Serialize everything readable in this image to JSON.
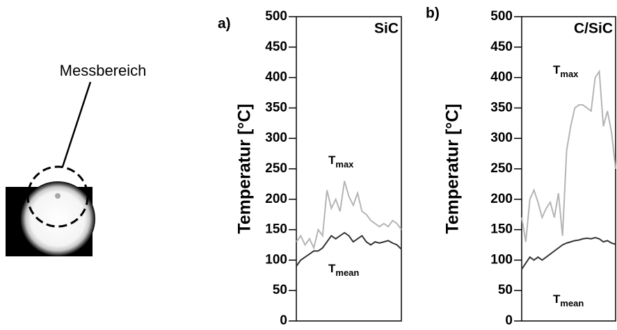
{
  "image_label": "Messbereich",
  "chart_data": [
    {
      "type": "line",
      "panel": "a)",
      "title": "SiC",
      "ylabel": "Temperatur [°C]",
      "ylim": [
        0,
        500
      ],
      "yticks": [
        0,
        50,
        100,
        150,
        200,
        250,
        300,
        350,
        400,
        450,
        500
      ],
      "series": [
        {
          "name": "T",
          "subscript": "max",
          "color": "#b4b4b4",
          "values": [
            130,
            140,
            125,
            135,
            120,
            150,
            140,
            215,
            185,
            200,
            180,
            230,
            205,
            190,
            210,
            180,
            175,
            165,
            160,
            155,
            160,
            155,
            165,
            160,
            150
          ]
        },
        {
          "name": "T",
          "subscript": "mean",
          "color": "#333333",
          "values": [
            90,
            100,
            105,
            110,
            115,
            115,
            120,
            130,
            140,
            135,
            140,
            145,
            140,
            130,
            135,
            140,
            130,
            125,
            130,
            128,
            130,
            132,
            128,
            125,
            118
          ]
        }
      ]
    },
    {
      "type": "line",
      "panel": "b)",
      "title": "C/SiC",
      "ylabel": "Temperatur [°C]",
      "ylim": [
        0,
        500
      ],
      "yticks": [
        0,
        50,
        100,
        150,
        200,
        250,
        300,
        350,
        400,
        450,
        500
      ],
      "series": [
        {
          "name": "T",
          "subscript": "max",
          "color": "#b4b4b4",
          "values": [
            170,
            130,
            200,
            215,
            195,
            170,
            185,
            195,
            170,
            210,
            140,
            280,
            320,
            350,
            355,
            355,
            350,
            345,
            400,
            410,
            320,
            345,
            310,
            250
          ]
        },
        {
          "name": "T",
          "subscript": "mean",
          "color": "#333333",
          "values": [
            85,
            95,
            105,
            100,
            105,
            100,
            105,
            110,
            115,
            120,
            125,
            128,
            130,
            132,
            133,
            135,
            136,
            135,
            137,
            135,
            130,
            132,
            128,
            126
          ]
        }
      ]
    }
  ]
}
